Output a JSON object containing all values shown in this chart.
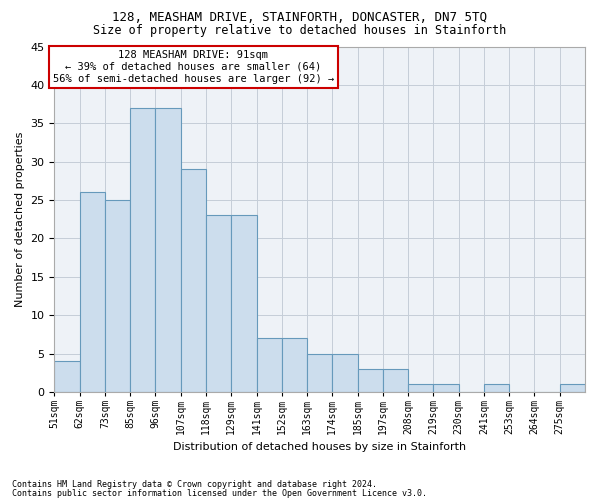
{
  "title": "128, MEASHAM DRIVE, STAINFORTH, DONCASTER, DN7 5TQ",
  "subtitle": "Size of property relative to detached houses in Stainforth",
  "xlabel": "Distribution of detached houses by size in Stainforth",
  "ylabel": "Number of detached properties",
  "bar_values": [
    4,
    26,
    25,
    37,
    37,
    29,
    23,
    23,
    7,
    7,
    5,
    5,
    3,
    3,
    1,
    1,
    0,
    1,
    0,
    0,
    1
  ],
  "bin_labels": [
    "51sqm",
    "62sqm",
    "73sqm",
    "85sqm",
    "96sqm",
    "107sqm",
    "118sqm",
    "129sqm",
    "141sqm",
    "152sqm",
    "163sqm",
    "174sqm",
    "185sqm",
    "197sqm",
    "208sqm",
    "219sqm",
    "230sqm",
    "241sqm",
    "253sqm",
    "264sqm",
    "275sqm"
  ],
  "bar_color": "#ccdded",
  "bar_edge_color": "#6699bb",
  "background_color": "#eef2f7",
  "grid_color": "#c5cdd8",
  "annotation_box_color": "#ffffff",
  "annotation_border_color": "#cc0000",
  "annotation_line1": "128 MEASHAM DRIVE: 91sqm",
  "annotation_line2": "← 39% of detached houses are smaller (64)",
  "annotation_line3": "56% of semi-detached houses are larger (92) →",
  "ylim": [
    0,
    45
  ],
  "yticks": [
    0,
    5,
    10,
    15,
    20,
    25,
    30,
    35,
    40,
    45
  ],
  "footnote1": "Contains HM Land Registry data © Crown copyright and database right 2024.",
  "footnote2": "Contains public sector information licensed under the Open Government Licence v3.0."
}
